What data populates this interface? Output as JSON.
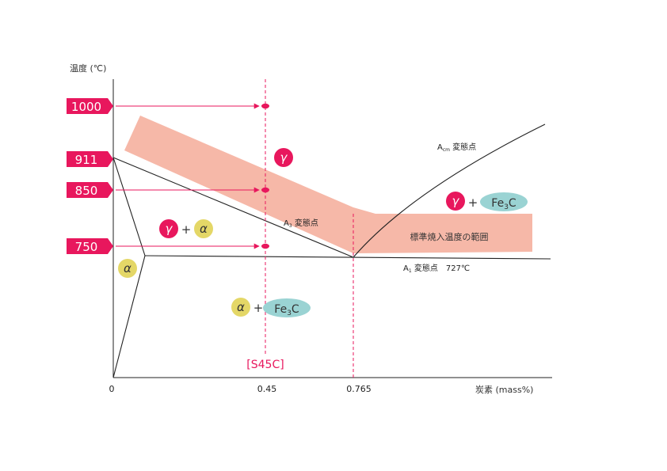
{
  "colors": {
    "accent": "#e8175d",
    "band": "#f6b8a8",
    "alpha_fill": "#e4d767",
    "fe3c_fill": "#9ad3d3",
    "line": "#222222"
  },
  "axes": {
    "y_title": "温度 (℃)",
    "x_title": "炭素 (mass%)",
    "x_ticks": [
      "0",
      "0.45",
      "0.765"
    ]
  },
  "temperature_markers": [
    {
      "label": "1000",
      "value": 1000
    },
    {
      "label": "911",
      "value": 911
    },
    {
      "label": "850",
      "value": 850
    },
    {
      "label": "750",
      "value": 750
    }
  ],
  "lines": {
    "a3": {
      "main": "A",
      "sub": "3",
      "suffix": " 変態点"
    },
    "acm": {
      "main": "A",
      "sub": "cm",
      "suffix": " 変態点"
    },
    "a1": {
      "main": "A",
      "sub": "1",
      "suffix": " 変態点　727℃"
    }
  },
  "band_label": "標準焼入温度の範囲",
  "steel_label": "[S45C]",
  "phases": {
    "gamma": "γ",
    "alpha": "α",
    "plus": "+",
    "fe3c": {
      "main": "Fe",
      "sub": "3",
      "suffix": "C"
    }
  }
}
